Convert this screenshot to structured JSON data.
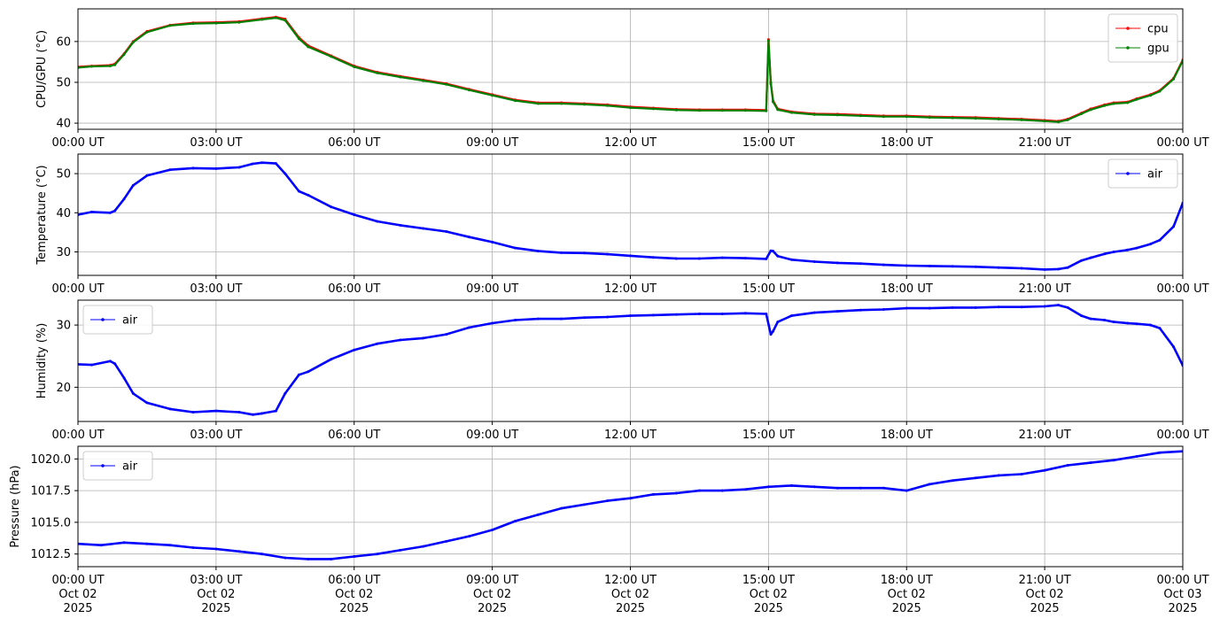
{
  "chart_data": [
    {
      "type": "line",
      "ylabel": "CPU/GPU (°C)",
      "xlim": [
        0,
        24
      ],
      "ylim": [
        38.5,
        68
      ],
      "yticks": [
        40,
        50,
        60
      ],
      "xticks": [
        0,
        3,
        6,
        9,
        12,
        15,
        18,
        21,
        24
      ],
      "xtick_labels": [
        "00:00 UT",
        "03:00 UT",
        "06:00 UT",
        "09:00 UT",
        "12:00 UT",
        "15:00 UT",
        "18:00 UT",
        "21:00 UT",
        "00:00 UT"
      ],
      "grid": true,
      "legend": "top-right",
      "series": [
        {
          "name": "cpu",
          "color": "#ff0000",
          "x": [
            0,
            0.3,
            0.7,
            0.8,
            1.0,
            1.2,
            1.5,
            2.0,
            2.5,
            3.0,
            3.5,
            4.0,
            4.3,
            4.5,
            4.8,
            5.0,
            5.5,
            6.0,
            6.5,
            7.0,
            7.5,
            8.0,
            8.5,
            9.0,
            9.5,
            10.0,
            10.5,
            11.0,
            11.5,
            12.0,
            12.5,
            13.0,
            13.5,
            14.0,
            14.5,
            14.95,
            15.0,
            15.05,
            15.1,
            15.2,
            15.5,
            16.0,
            16.5,
            17.0,
            17.5,
            18.0,
            18.5,
            19.0,
            19.5,
            20.0,
            20.5,
            21.0,
            21.3,
            21.5,
            21.8,
            22.0,
            22.3,
            22.5,
            22.8,
            23.0,
            23.3,
            23.5,
            23.8,
            24.0
          ],
          "y": [
            53.8,
            54.0,
            54.2,
            54.5,
            57.0,
            60.0,
            62.5,
            64.0,
            64.6,
            64.7,
            64.9,
            65.6,
            66.0,
            65.5,
            61.0,
            59.0,
            56.5,
            54.0,
            52.5,
            51.5,
            50.6,
            49.7,
            48.3,
            47.0,
            45.7,
            45.0,
            45.0,
            44.8,
            44.5,
            44.0,
            43.7,
            43.4,
            43.3,
            43.3,
            43.3,
            43.2,
            60.5,
            50.0,
            45.5,
            43.5,
            42.8,
            42.3,
            42.2,
            42.0,
            41.8,
            41.8,
            41.6,
            41.5,
            41.4,
            41.2,
            41.0,
            40.7,
            40.5,
            41.0,
            42.5,
            43.5,
            44.5,
            45.0,
            45.2,
            46.0,
            47.0,
            48.0,
            51.0,
            55.5
          ]
        },
        {
          "name": "gpu",
          "color": "#008000",
          "x": [
            0,
            0.3,
            0.7,
            0.8,
            1.0,
            1.2,
            1.5,
            2.0,
            2.5,
            3.0,
            3.5,
            4.0,
            4.3,
            4.5,
            4.8,
            5.0,
            5.5,
            6.0,
            6.5,
            7.0,
            7.5,
            8.0,
            8.5,
            9.0,
            9.5,
            10.0,
            10.5,
            11.0,
            11.5,
            12.0,
            12.5,
            13.0,
            13.5,
            14.0,
            14.5,
            14.95,
            15.0,
            15.05,
            15.1,
            15.2,
            15.5,
            16.0,
            16.5,
            17.0,
            17.5,
            18.0,
            18.5,
            19.0,
            19.5,
            20.0,
            20.5,
            21.0,
            21.3,
            21.5,
            21.8,
            22.0,
            22.3,
            22.5,
            22.8,
            23.0,
            23.3,
            23.5,
            23.8,
            24.0
          ],
          "y": [
            53.6,
            53.9,
            54.0,
            54.3,
            56.8,
            59.8,
            62.3,
            63.9,
            64.4,
            64.5,
            64.7,
            65.4,
            65.8,
            65.2,
            60.7,
            58.7,
            56.3,
            53.8,
            52.3,
            51.3,
            50.4,
            49.5,
            48.1,
            46.8,
            45.5,
            44.8,
            44.8,
            44.6,
            44.3,
            43.8,
            43.5,
            43.2,
            43.1,
            43.1,
            43.1,
            43.0,
            60.2,
            49.6,
            45.2,
            43.3,
            42.6,
            42.1,
            42.0,
            41.8,
            41.6,
            41.6,
            41.4,
            41.3,
            41.2,
            41.0,
            40.8,
            40.5,
            40.3,
            40.8,
            42.3,
            43.3,
            44.3,
            44.8,
            45.0,
            45.8,
            46.8,
            47.8,
            50.8,
            55.3
          ]
        }
      ]
    },
    {
      "type": "line",
      "ylabel": "Temperature (°C)",
      "xlim": [
        0,
        24
      ],
      "ylim": [
        24,
        55
      ],
      "yticks": [
        30,
        40,
        50
      ],
      "xticks": [
        0,
        3,
        6,
        9,
        12,
        15,
        18,
        21,
        24
      ],
      "xtick_labels": [
        "00:00 UT",
        "03:00 UT",
        "06:00 UT",
        "09:00 UT",
        "12:00 UT",
        "15:00 UT",
        "18:00 UT",
        "21:00 UT",
        "00:00 UT"
      ],
      "grid": true,
      "legend": "top-right",
      "series": [
        {
          "name": "air",
          "color": "#0000ff",
          "x": [
            0,
            0.3,
            0.7,
            0.8,
            1.0,
            1.2,
            1.5,
            2.0,
            2.5,
            3.0,
            3.5,
            3.8,
            4.0,
            4.3,
            4.5,
            4.8,
            5.0,
            5.5,
            6.0,
            6.5,
            7.0,
            7.5,
            8.0,
            8.5,
            9.0,
            9.5,
            10.0,
            10.5,
            11.0,
            11.5,
            12.0,
            12.5,
            13.0,
            13.5,
            14.0,
            14.5,
            14.95,
            15.05,
            15.1,
            15.2,
            15.5,
            16.0,
            16.5,
            17.0,
            17.5,
            18.0,
            18.5,
            19.0,
            19.5,
            20.0,
            20.5,
            21.0,
            21.3,
            21.5,
            21.8,
            22.0,
            22.3,
            22.5,
            22.8,
            23.0,
            23.3,
            23.5,
            23.8,
            24.0
          ],
          "y": [
            39.5,
            40.2,
            40.0,
            40.5,
            43.5,
            47.0,
            49.5,
            51.0,
            51.4,
            51.3,
            51.6,
            52.5,
            52.8,
            52.6,
            50.0,
            45.5,
            44.5,
            41.5,
            39.5,
            37.8,
            36.8,
            36.0,
            35.2,
            33.8,
            32.5,
            31.0,
            30.2,
            29.8,
            29.7,
            29.4,
            29.0,
            28.6,
            28.3,
            28.3,
            28.5,
            28.4,
            28.2,
            30.3,
            30.2,
            28.9,
            28.0,
            27.5,
            27.2,
            27.0,
            26.7,
            26.5,
            26.4,
            26.3,
            26.2,
            26.0,
            25.8,
            25.5,
            25.6,
            26.0,
            27.8,
            28.5,
            29.5,
            30.0,
            30.5,
            31.0,
            32.0,
            33.0,
            36.5,
            42.5
          ]
        }
      ]
    },
    {
      "type": "line",
      "ylabel": "Humidity (%)",
      "xlim": [
        0,
        24
      ],
      "ylim": [
        14.5,
        34
      ],
      "yticks": [
        20,
        30
      ],
      "xticks": [
        0,
        3,
        6,
        9,
        12,
        15,
        18,
        21,
        24
      ],
      "xtick_labels": [
        "00:00 UT",
        "03:00 UT",
        "06:00 UT",
        "09:00 UT",
        "12:00 UT",
        "15:00 UT",
        "18:00 UT",
        "21:00 UT",
        "00:00 UT"
      ],
      "grid": true,
      "legend": "top-left",
      "series": [
        {
          "name": "air",
          "color": "#0000ff",
          "x": [
            0,
            0.3,
            0.7,
            0.8,
            1.0,
            1.2,
            1.5,
            2.0,
            2.5,
            3.0,
            3.5,
            3.8,
            4.0,
            4.3,
            4.5,
            4.8,
            5.0,
            5.5,
            6.0,
            6.5,
            7.0,
            7.5,
            8.0,
            8.5,
            9.0,
            9.5,
            10.0,
            10.5,
            11.0,
            11.5,
            12.0,
            12.5,
            13.0,
            13.5,
            14.0,
            14.5,
            14.95,
            15.05,
            15.1,
            15.2,
            15.5,
            16.0,
            16.5,
            17.0,
            17.5,
            18.0,
            18.5,
            19.0,
            19.5,
            20.0,
            20.5,
            21.0,
            21.3,
            21.5,
            21.8,
            22.0,
            22.3,
            22.5,
            22.8,
            23.0,
            23.3,
            23.5,
            23.8,
            24.0
          ],
          "y": [
            23.7,
            23.6,
            24.2,
            23.8,
            21.5,
            19.0,
            17.5,
            16.5,
            16.0,
            16.2,
            16.0,
            15.6,
            15.8,
            16.2,
            19.0,
            22.0,
            22.5,
            24.5,
            26.0,
            27.0,
            27.6,
            27.9,
            28.5,
            29.6,
            30.3,
            30.8,
            31.0,
            31.0,
            31.2,
            31.3,
            31.5,
            31.6,
            31.7,
            31.8,
            31.8,
            31.9,
            31.8,
            28.5,
            29.0,
            30.5,
            31.5,
            32.0,
            32.2,
            32.4,
            32.5,
            32.7,
            32.7,
            32.8,
            32.8,
            32.9,
            32.9,
            33.0,
            33.2,
            32.8,
            31.5,
            31.0,
            30.8,
            30.5,
            30.3,
            30.2,
            30.0,
            29.5,
            26.5,
            23.5
          ]
        }
      ]
    },
    {
      "type": "line",
      "ylabel": "Pressure (hPa)",
      "xlim": [
        0,
        24
      ],
      "ylim": [
        1011.5,
        1021
      ],
      "yticks": [
        1012.5,
        1015.0,
        1017.5,
        1020.0
      ],
      "ytick_labels": [
        "1012.5",
        "1015.0",
        "1017.5",
        "1020.0"
      ],
      "xticks": [
        0,
        3,
        6,
        9,
        12,
        15,
        18,
        21,
        24
      ],
      "xtick_labels": [
        "00:00 UT\nOct 02\n2025",
        "03:00 UT\nOct 02\n2025",
        "06:00 UT\nOct 02\n2025",
        "09:00 UT\nOct 02\n2025",
        "12:00 UT\nOct 02\n2025",
        "15:00 UT\nOct 02\n2025",
        "18:00 UT\nOct 02\n2025",
        "21:00 UT\nOct 02\n2025",
        "00:00 UT\nOct 03\n2025"
      ],
      "grid": true,
      "legend": "top-left",
      "series": [
        {
          "name": "air",
          "color": "#0000ff",
          "x": [
            0,
            0.5,
            1.0,
            1.5,
            2.0,
            2.5,
            3.0,
            3.5,
            4.0,
            4.5,
            5.0,
            5.5,
            6.0,
            6.5,
            7.0,
            7.5,
            8.0,
            8.5,
            9.0,
            9.5,
            10.0,
            10.5,
            11.0,
            11.5,
            12.0,
            12.5,
            13.0,
            13.5,
            14.0,
            14.5,
            15.0,
            15.5,
            16.0,
            16.5,
            17.0,
            17.5,
            18.0,
            18.5,
            19.0,
            19.5,
            20.0,
            20.5,
            21.0,
            21.5,
            22.0,
            22.5,
            23.0,
            23.5,
            24.0
          ],
          "y": [
            1013.3,
            1013.2,
            1013.4,
            1013.3,
            1013.2,
            1013.0,
            1012.9,
            1012.7,
            1012.5,
            1012.2,
            1012.1,
            1012.1,
            1012.3,
            1012.5,
            1012.8,
            1013.1,
            1013.5,
            1013.9,
            1014.4,
            1015.1,
            1015.6,
            1016.1,
            1016.4,
            1016.7,
            1016.9,
            1017.2,
            1017.3,
            1017.5,
            1017.5,
            1017.6,
            1017.8,
            1017.9,
            1017.8,
            1017.7,
            1017.7,
            1017.7,
            1017.5,
            1018.0,
            1018.3,
            1018.5,
            1018.7,
            1018.8,
            1019.1,
            1019.5,
            1019.7,
            1019.9,
            1020.2,
            1020.5,
            1020.6
          ]
        }
      ]
    }
  ]
}
